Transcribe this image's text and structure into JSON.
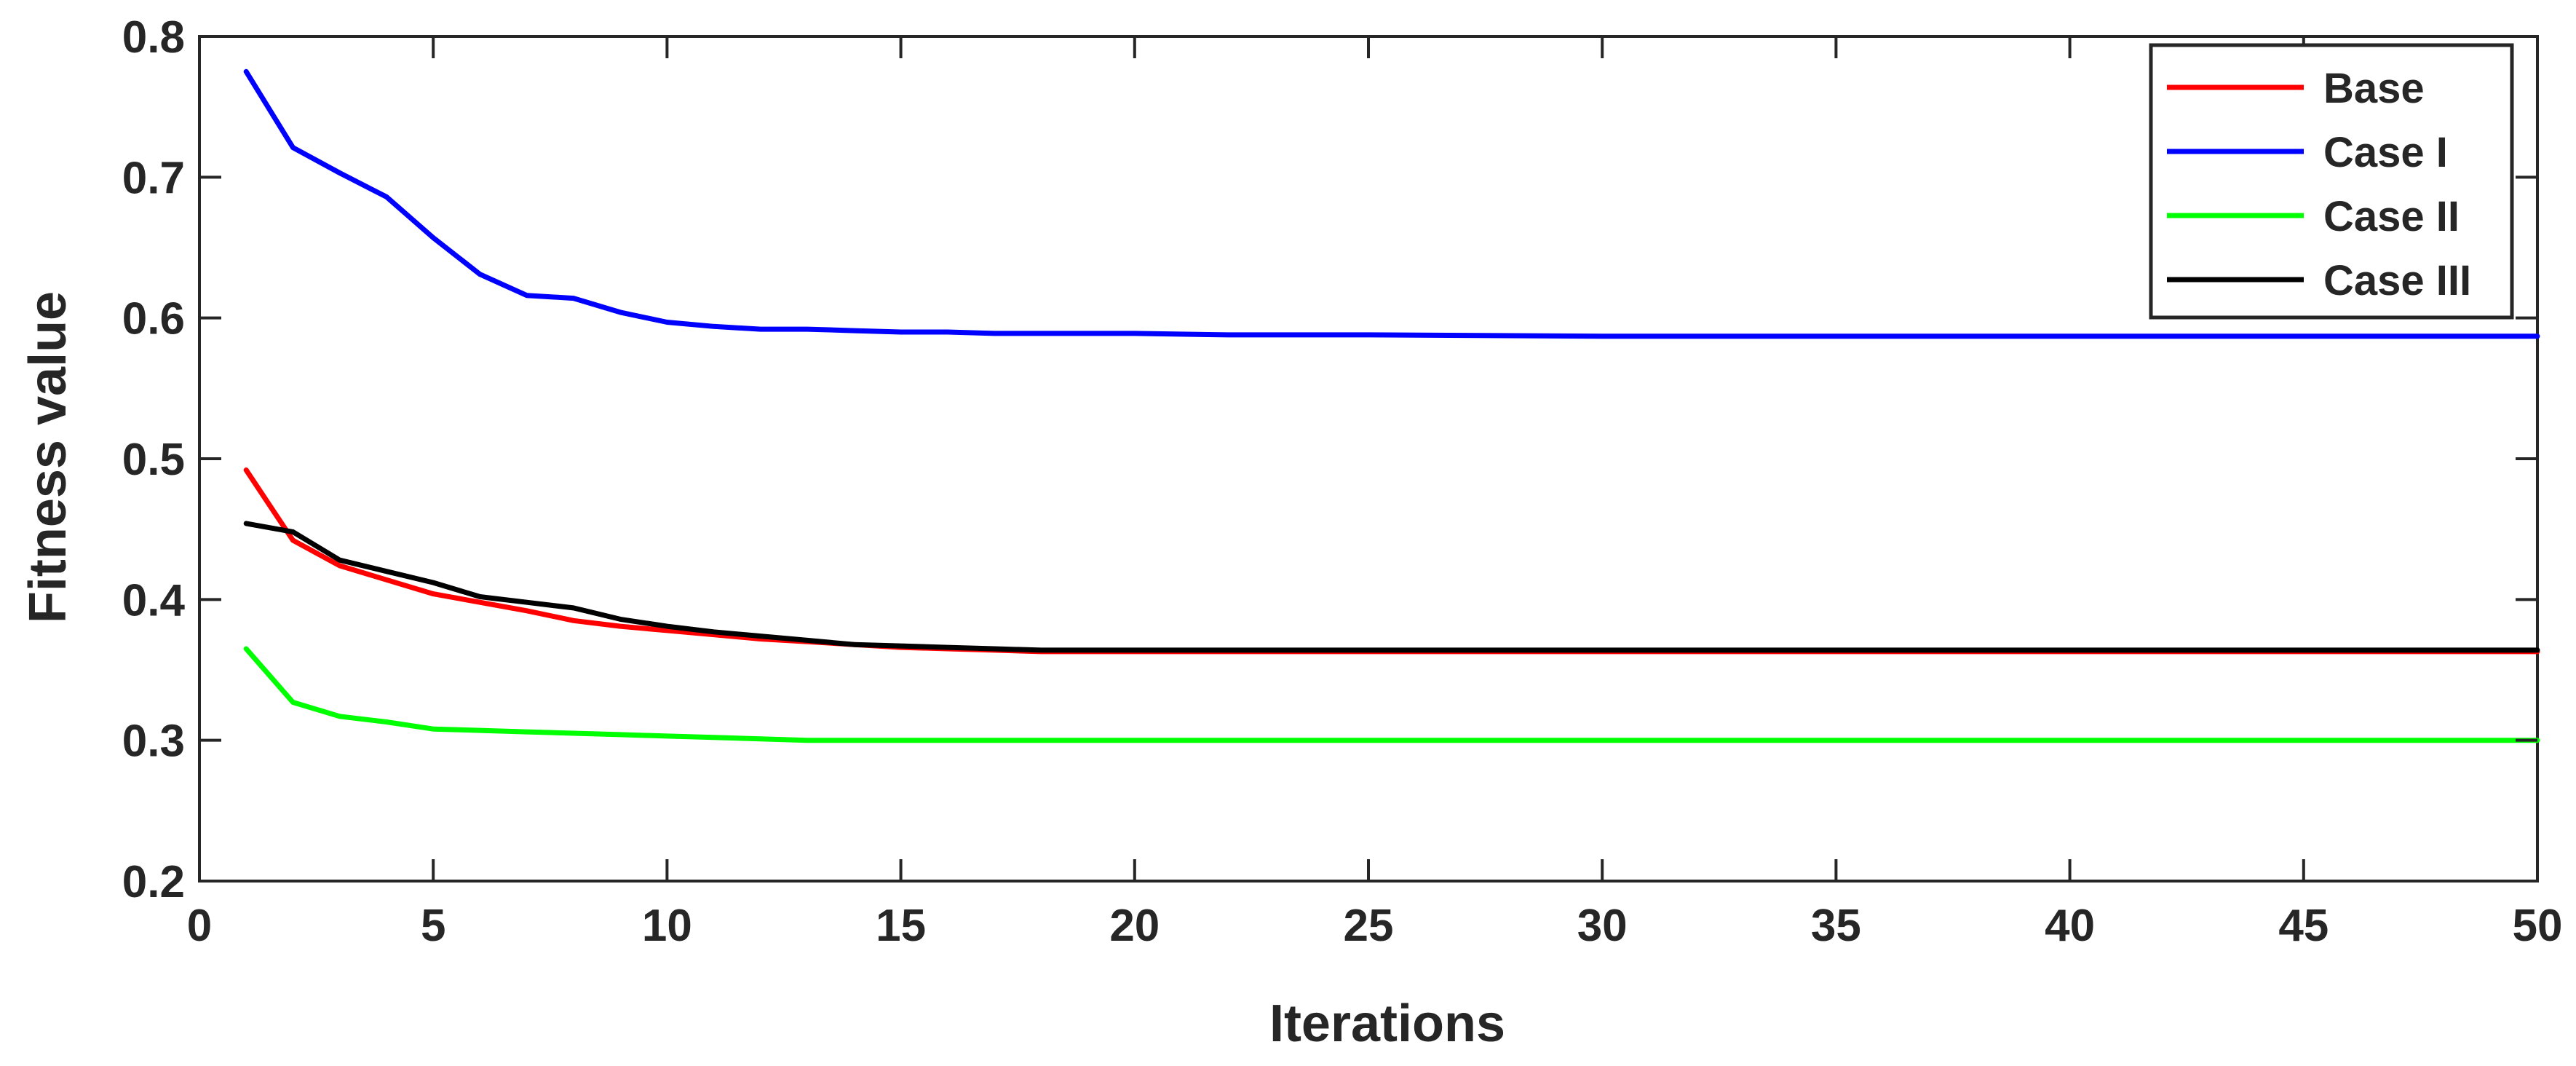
{
  "chart_data": {
    "type": "line",
    "title": "",
    "xlabel": "Iterations",
    "ylabel": "Fitness value",
    "xlim": [
      0,
      50
    ],
    "ylim": [
      0.2,
      0.8
    ],
    "xticks": [
      "0",
      "5",
      "10",
      "15",
      "20",
      "25",
      "30",
      "35",
      "40",
      "45",
      "50"
    ],
    "yticks": [
      "0.2",
      "0.3",
      "0.4",
      "0.5",
      "0.6",
      "0.7",
      "0.8"
    ],
    "grid": false,
    "legend_position": "top-right",
    "series": [
      {
        "name": "Base",
        "color": "#ff0000",
        "x": [
          1,
          2,
          3,
          4,
          5,
          6,
          7,
          8,
          9,
          10,
          11,
          12,
          13,
          14,
          15,
          16,
          17,
          18,
          20,
          25,
          30,
          35,
          40,
          45,
          50
        ],
        "y": [
          0.492,
          0.442,
          0.424,
          0.414,
          0.404,
          0.398,
          0.392,
          0.385,
          0.381,
          0.378,
          0.375,
          0.372,
          0.37,
          0.368,
          0.366,
          0.365,
          0.364,
          0.363,
          0.363,
          0.363,
          0.363,
          0.363,
          0.363,
          0.363,
          0.363
        ]
      },
      {
        "name": "Case I",
        "color": "#0000ff",
        "x": [
          1,
          2,
          3,
          4,
          5,
          6,
          7,
          8,
          9,
          10,
          11,
          12,
          13,
          14,
          15,
          16,
          17,
          18,
          20,
          22,
          25,
          30,
          35,
          40,
          45,
          50
        ],
        "y": [
          0.775,
          0.721,
          0.703,
          0.686,
          0.657,
          0.631,
          0.616,
          0.614,
          0.604,
          0.597,
          0.594,
          0.592,
          0.592,
          0.591,
          0.59,
          0.59,
          0.589,
          0.589,
          0.589,
          0.588,
          0.588,
          0.587,
          0.587,
          0.587,
          0.587,
          0.587
        ]
      },
      {
        "name": "Case II",
        "color": "#00ff00",
        "x": [
          1,
          2,
          3,
          4,
          5,
          6,
          7,
          8,
          9,
          10,
          11,
          12,
          13,
          14,
          15,
          20,
          25,
          30,
          35,
          40,
          45,
          50
        ],
        "y": [
          0.365,
          0.327,
          0.317,
          0.313,
          0.308,
          0.307,
          0.306,
          0.305,
          0.304,
          0.303,
          0.302,
          0.301,
          0.3,
          0.3,
          0.3,
          0.3,
          0.3,
          0.3,
          0.3,
          0.3,
          0.3,
          0.3
        ]
      },
      {
        "name": "Case III",
        "color": "#000000",
        "x": [
          1,
          2,
          3,
          4,
          5,
          6,
          7,
          8,
          9,
          10,
          11,
          12,
          13,
          14,
          15,
          16,
          17,
          18,
          20,
          25,
          30,
          35,
          40,
          45,
          50
        ],
        "y": [
          0.454,
          0.448,
          0.428,
          0.42,
          0.412,
          0.402,
          0.398,
          0.394,
          0.386,
          0.381,
          0.377,
          0.374,
          0.371,
          0.368,
          0.367,
          0.366,
          0.365,
          0.364,
          0.364,
          0.364,
          0.364,
          0.364,
          0.364,
          0.364,
          0.364
        ]
      }
    ]
  }
}
